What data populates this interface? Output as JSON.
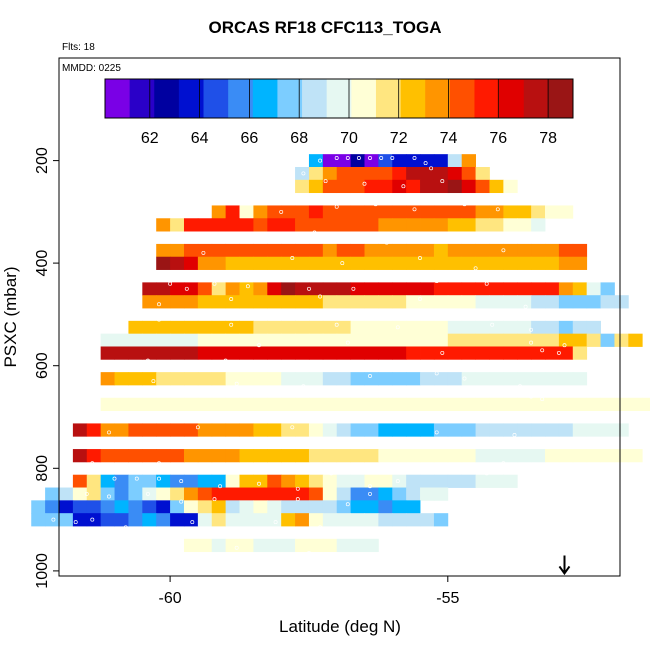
{
  "title": "ORCAS RF18 CFC113_TOGA",
  "flights_label": "Flts: 18",
  "date_label": "MMDD: 0225",
  "colors": {
    "palette": [
      "#7a00e6",
      "#2a00c8",
      "#0000a0",
      "#0010d0",
      "#1f50e8",
      "#3a8cf5",
      "#00b4ff",
      "#7ccdff",
      "#bfe3f7",
      "#e6f8f2",
      "#ffffd6",
      "#ffe680",
      "#ffc000",
      "#ff9500",
      "#ff5000",
      "#ff1a00",
      "#e00000",
      "#b81010",
      "#9a1515"
    ],
    "marker": "#ffffff"
  },
  "chart_data": {
    "type": "heatmap",
    "title": "ORCAS RF18 CFC113_TOGA",
    "xlabel": "Latitude (deg N)",
    "ylabel": "PSXC (mbar)",
    "xlim": [
      -62.0,
      -51.9
    ],
    "ylim": [
      1010,
      0
    ],
    "x_ticks": [
      -60,
      -55
    ],
    "x_tick_labels": [
      "-60",
      "-55"
    ],
    "y_ticks": [
      200,
      400,
      600,
      800,
      1000
    ],
    "y_tick_labels": [
      "200",
      "400",
      "600",
      "800",
      "1000"
    ],
    "colorbar": {
      "min": 60.2,
      "max": 79.0,
      "ticks": [
        62,
        64,
        66,
        68,
        70,
        72,
        74,
        76,
        78
      ],
      "tick_labels": [
        "62",
        "64",
        "66",
        "68",
        "70",
        "72",
        "74",
        "76",
        "78"
      ]
    },
    "cell_width_deg": 0.25,
    "cell_height_mbar": 25,
    "rows": [
      {
        "p": 200,
        "x0": -57.5,
        "values": [
          66.5,
          61,
          60.5,
          62.5,
          60.8,
          64.5,
          63.5,
          63.2,
          63.5,
          63.8,
          68.5,
          73.5
        ]
      },
      {
        "p": 225,
        "x0": -57.75,
        "values": [
          68.5,
          72,
          74,
          74.5,
          74.5,
          74.5,
          75,
          76,
          77.5,
          78,
          78,
          77,
          74.5,
          71.5
        ]
      },
      {
        "p": 250,
        "x0": -57.75,
        "values": [
          71.5,
          73,
          75,
          75,
          75,
          76,
          76,
          76.5,
          76,
          77.5,
          78,
          78.5,
          77,
          75,
          72.5,
          71
        ]
      },
      {
        "p": 300,
        "x0": -59.25,
        "values": [
          74,
          75.5,
          71,
          73.5,
          74.5,
          75,
          75,
          75.5,
          75,
          75,
          75,
          75,
          75,
          74.5,
          74.5,
          75,
          74.5,
          75,
          74.5,
          74,
          74,
          73,
          72.5,
          71.5,
          71,
          70.5
        ]
      },
      {
        "p": 325,
        "x0": -60.25,
        "values": [
          74,
          72,
          75.5,
          76,
          75.5,
          75.5,
          75.5,
          75,
          75.5,
          75.5,
          75,
          74.5,
          74.5,
          74.5,
          75,
          74.5,
          74,
          74,
          74,
          74,
          73.5,
          73,
          72.5,
          72,
          71.5,
          70.5,
          70.5,
          70
        ]
      },
      {
        "p": 375,
        "x0": -60.25,
        "values": [
          73.5,
          74,
          74.5,
          75,
          75,
          75,
          75,
          74.5,
          74.5,
          75,
          75,
          74.5,
          74,
          74.5,
          74.5,
          74,
          74,
          74,
          73.5,
          73.5,
          73,
          73.5,
          73.5,
          74,
          74,
          73.5,
          73.5,
          74,
          74,
          74.5,
          75
        ]
      },
      {
        "p": 400,
        "x0": -60.25,
        "values": [
          79,
          78,
          76.5,
          74,
          73.5,
          73,
          72.5,
          72.5,
          72.5,
          72.5,
          72.5,
          72.5,
          72.5,
          72.5,
          72.5,
          72.5,
          72.5,
          72.5,
          72.5,
          72.5,
          72.5,
          72.5,
          72.5,
          72.5,
          72.5,
          72.5,
          72.5,
          72.5,
          72.5,
          73.5,
          74
        ]
      },
      {
        "p": 450,
        "x0": -60.5,
        "values": [
          78,
          78,
          76.5,
          77,
          74.5,
          72,
          74,
          72.5,
          74,
          77,
          78.5,
          78,
          78,
          77.5,
          77.5,
          77,
          77,
          77,
          77,
          77,
          76.5,
          76,
          76,
          76,
          76,
          75.5,
          76,
          76,
          76,
          75.5,
          74,
          72.5,
          70,
          68
        ]
      },
      {
        "p": 475,
        "x0": -60.5,
        "values": [
          73.5,
          73.5,
          73.5,
          73.5,
          73,
          73,
          73,
          73,
          73,
          73,
          72.5,
          72.5,
          72.5,
          72,
          72,
          72,
          71.5,
          71.5,
          71.5,
          71,
          71,
          70.5,
          70.5,
          70.5,
          70,
          70,
          70,
          69.5,
          69,
          68.5,
          68,
          68,
          68,
          68.5,
          69
        ]
      },
      {
        "p": 525,
        "x0": -60.75,
        "values": [
          72.5,
          72.5,
          72.5,
          72.5,
          72.5,
          72.5,
          72.5,
          72.5,
          72.5,
          72,
          72,
          72,
          72,
          71.5,
          71.5,
          71.5,
          71,
          71,
          71,
          70.5,
          70.5,
          70.5,
          70.5,
          70,
          70,
          70,
          70,
          70,
          69.5,
          69,
          68.5,
          68,
          69,
          69
        ]
      },
      {
        "p": 550,
        "x0": -61.25,
        "values": [
          70,
          70,
          70,
          70,
          70,
          70,
          70,
          70.5,
          70.5,
          70.5,
          70.5,
          70.5,
          70.5,
          70.5,
          70.5,
          70.5,
          70.5,
          70.5,
          70.5,
          70.5,
          71,
          71,
          71,
          71,
          71,
          71.5,
          71.5,
          71.5,
          72,
          72,
          72,
          72,
          72,
          72.5,
          72.5,
          72,
          68,
          72,
          73
        ]
      },
      {
        "p": 575,
        "x0": -61.25,
        "values": [
          78,
          78,
          78,
          78,
          77.5,
          77.5,
          77.5,
          77,
          77,
          77,
          77,
          77,
          77,
          76.5,
          76.5,
          76.5,
          76.5,
          76.5,
          76.5,
          76.5,
          76.5,
          76.5,
          76,
          76,
          76,
          76,
          76,
          76,
          76,
          76,
          76,
          75.5,
          75.5,
          75.5,
          71.5
        ]
      },
      {
        "p": 625,
        "x0": -61.25,
        "values": [
          74,
          73,
          73,
          72.5,
          72,
          72,
          72,
          71.5,
          71.5,
          71,
          71,
          70.5,
          70.5,
          70,
          70,
          69.5,
          69,
          68.5,
          68,
          68,
          67.5,
          67.5,
          68,
          68.5,
          69,
          69,
          69.5,
          69.5,
          69.5,
          70,
          70,
          70,
          70,
          70,
          70
        ]
      },
      {
        "p": 675,
        "x0": -61.25,
        "values": [
          70.5,
          70.5,
          70.5,
          70.5,
          70.5,
          70.5,
          70.5,
          70.5,
          70.5,
          70.5,
          70.5,
          70.5,
          70.5,
          70.5,
          70.5,
          70.5,
          70.5,
          70.5,
          70.5,
          70.5,
          70.5,
          70.5,
          70.5,
          70.5,
          70.5,
          70.5,
          70.5,
          70.5,
          70.5,
          70.5,
          70.5,
          70.5,
          70.5,
          70.5,
          70.5,
          70.5,
          70.5,
          70.5,
          70.5,
          70.5,
          70.5,
          70.5,
          70.5,
          70.5,
          70.5,
          70.5,
          70.5,
          70.5
        ]
      },
      {
        "p": 725,
        "x0": -61.75,
        "values": [
          78,
          76,
          74,
          74,
          74.5,
          75,
          75,
          75,
          74.5,
          74,
          74,
          73.5,
          73.5,
          73,
          72.5,
          72,
          71.5,
          70.5,
          70,
          69,
          68,
          67.5,
          67,
          67,
          67,
          67,
          67.5,
          68,
          68,
          68.5,
          68.5,
          68.5,
          68.5,
          69,
          69,
          69,
          69.5,
          69.5,
          69.5,
          70
        ]
      },
      {
        "p": 775,
        "x0": -61.75,
        "values": [
          77.5,
          76,
          75,
          75,
          75,
          75,
          74.5,
          74.5,
          74,
          74,
          73.5,
          73.5,
          73,
          73,
          73,
          72.5,
          72.5,
          72,
          72,
          71.5,
          71.5,
          71.5,
          71,
          71,
          71,
          70.5,
          70.5,
          70.5,
          70.5,
          70,
          70,
          70,
          70,
          70,
          70.5,
          70.5,
          70.5,
          70.5,
          70.5,
          70.5,
          70.5
        ]
      },
      {
        "p": 825,
        "x0": -61.75,
        "values": [
          74.5,
          72,
          67,
          66,
          68,
          67.5,
          66.5,
          65.5,
          66,
          66.5,
          67,
          70.5,
          73,
          72.5,
          75,
          74,
          72.5,
          72,
          70.5,
          69.5,
          70,
          70.5,
          70.5,
          70,
          69,
          68.5,
          68.5,
          69,
          69,
          69.5,
          70,
          70
        ]
      },
      {
        "p": 850,
        "x0": -62.25,
        "values": [
          68,
          69,
          71,
          72,
          67.5,
          66,
          68,
          70,
          71,
          72,
          73.5,
          75,
          76,
          76,
          76,
          75.5,
          75.5,
          75.5,
          75.5,
          74.5,
          71,
          68.5,
          66,
          66,
          67,
          67.5,
          68.5,
          69.5,
          70
        ]
      },
      {
        "p": 875,
        "x0": -62.5,
        "values": [
          68,
          66,
          64,
          65,
          65,
          66,
          66.5,
          66,
          65,
          64,
          68,
          71,
          72,
          72.5,
          69,
          70,
          70.5,
          70,
          69,
          68.5,
          68.5,
          68.5,
          68,
          67,
          67,
          66,
          66.5,
          67
        ]
      },
      {
        "p": 900,
        "x0": -62.5,
        "values": [
          68,
          68,
          68,
          64,
          64,
          65,
          65,
          66,
          66.5,
          66,
          64,
          64,
          70,
          72,
          70,
          70,
          70,
          70,
          72.5,
          73.5,
          71,
          70,
          70,
          70,
          69.5,
          68.5,
          68.5,
          68.5,
          68.5,
          68
        ]
      },
      {
        "p": 950,
        "x0": -59.75,
        "values": [
          70.5,
          70.5,
          70,
          70.5,
          70.5,
          70,
          70,
          70,
          70.5,
          70.5,
          70.5,
          70,
          70,
          69.5
        ]
      }
    ],
    "sample_points": [
      [
        -57.3,
        200
      ],
      [
        -57.0,
        195
      ],
      [
        -56.8,
        195
      ],
      [
        -56.6,
        195
      ],
      [
        -56.4,
        195
      ],
      [
        -56.2,
        195
      ],
      [
        -56.0,
        195
      ],
      [
        -55.6,
        195
      ],
      [
        -55.4,
        205
      ],
      [
        -55.3,
        215
      ],
      [
        -57.6,
        225
      ],
      [
        -57.2,
        240
      ],
      [
        -56.5,
        245
      ],
      [
        -55.8,
        250
      ],
      [
        -55.1,
        240
      ],
      [
        -58.3,
        280
      ],
      [
        -58.0,
        300
      ],
      [
        -57.0,
        290
      ],
      [
        -56.3,
        285
      ],
      [
        -55.6,
        295
      ],
      [
        -54.7,
        285
      ],
      [
        -54.1,
        295
      ],
      [
        -59.0,
        345
      ],
      [
        -58.4,
        355
      ],
      [
        -57.4,
        340
      ],
      [
        -56.1,
        360
      ],
      [
        -55.3,
        355
      ],
      [
        -54.0,
        375
      ],
      [
        -59.4,
        380
      ],
      [
        -57.8,
        390
      ],
      [
        -56.9,
        400
      ],
      [
        -55.5,
        390
      ],
      [
        -54.5,
        410
      ],
      [
        -54.1,
        420
      ],
      [
        -60.0,
        440
      ],
      [
        -59.7,
        450
      ],
      [
        -59.2,
        440
      ],
      [
        -58.6,
        445
      ],
      [
        -57.5,
        450
      ],
      [
        -56.7,
        450
      ],
      [
        -55.2,
        435
      ],
      [
        -54.3,
        440
      ],
      [
        -53.8,
        430
      ],
      [
        -60.2,
        480
      ],
      [
        -58.9,
        470
      ],
      [
        -57.3,
        465
      ],
      [
        -55.5,
        470
      ],
      [
        -53.6,
        485
      ],
      [
        -60.2,
        510
      ],
      [
        -58.9,
        520
      ],
      [
        -57.0,
        520
      ],
      [
        -55.9,
        525
      ],
      [
        -54.2,
        520
      ],
      [
        -53.5,
        530
      ],
      [
        -58.4,
        560
      ],
      [
        -56.8,
        555
      ],
      [
        -55.1,
        575
      ],
      [
        -53.5,
        555
      ],
      [
        -53.3,
        570
      ],
      [
        -53.0,
        575
      ],
      [
        -52.9,
        560
      ],
      [
        -61.2,
        600
      ],
      [
        -60.4,
        590
      ],
      [
        -59.0,
        590
      ],
      [
        -57.8,
        605
      ],
      [
        -56.4,
        620
      ],
      [
        -55.2,
        615
      ],
      [
        -53.8,
        595
      ],
      [
        -53.6,
        600
      ],
      [
        -60.3,
        630
      ],
      [
        -58.8,
        635
      ],
      [
        -57.6,
        640
      ],
      [
        -56.3,
        645
      ],
      [
        -55.8,
        650
      ],
      [
        -54.7,
        625
      ],
      [
        -53.7,
        640
      ],
      [
        -53.5,
        660
      ],
      [
        -53.3,
        665
      ],
      [
        -61.1,
        730
      ],
      [
        -59.5,
        720
      ],
      [
        -57.8,
        720
      ],
      [
        -56.5,
        745
      ],
      [
        -55.2,
        730
      ],
      [
        -53.8,
        735
      ],
      [
        -61.4,
        790
      ],
      [
        -60.2,
        790
      ],
      [
        -58.4,
        800
      ],
      [
        -57.1,
        810
      ],
      [
        -55.8,
        795
      ],
      [
        -54.3,
        810
      ],
      [
        -54.0,
        790
      ],
      [
        -61.0,
        820
      ],
      [
        -60.6,
        820
      ],
      [
        -60.2,
        820
      ],
      [
        -59.8,
        825
      ],
      [
        -59.1,
        835
      ],
      [
        -58.4,
        830
      ],
      [
        -57.7,
        840
      ],
      [
        -56.4,
        835
      ],
      [
        -55.9,
        825
      ],
      [
        -61.5,
        850
      ],
      [
        -61.1,
        855
      ],
      [
        -60.4,
        850
      ],
      [
        -59.8,
        865
      ],
      [
        -59.2,
        860
      ],
      [
        -57.7,
        860
      ],
      [
        -56.8,
        870
      ],
      [
        -56.4,
        850
      ],
      [
        -62.1,
        900
      ],
      [
        -61.7,
        905
      ],
      [
        -61.4,
        900
      ],
      [
        -60.8,
        915
      ],
      [
        -60.4,
        920
      ],
      [
        -59.6,
        905
      ],
      [
        -58.8,
        925
      ],
      [
        -58.1,
        905
      ],
      [
        -57.3,
        915
      ],
      [
        -56.7,
        920
      ],
      [
        -62.3,
        945
      ],
      [
        -61.6,
        950
      ],
      [
        -61.1,
        950
      ],
      [
        -60.6,
        948
      ],
      [
        -60.2,
        950
      ],
      [
        -59.8,
        945
      ],
      [
        -58.8,
        955
      ],
      [
        -57.5,
        965
      ],
      [
        -56.6,
        975
      ],
      [
        -56.2,
        970
      ]
    ],
    "arrow": {
      "x": -52.9,
      "p_from": 970,
      "p_to": 1005
    }
  }
}
